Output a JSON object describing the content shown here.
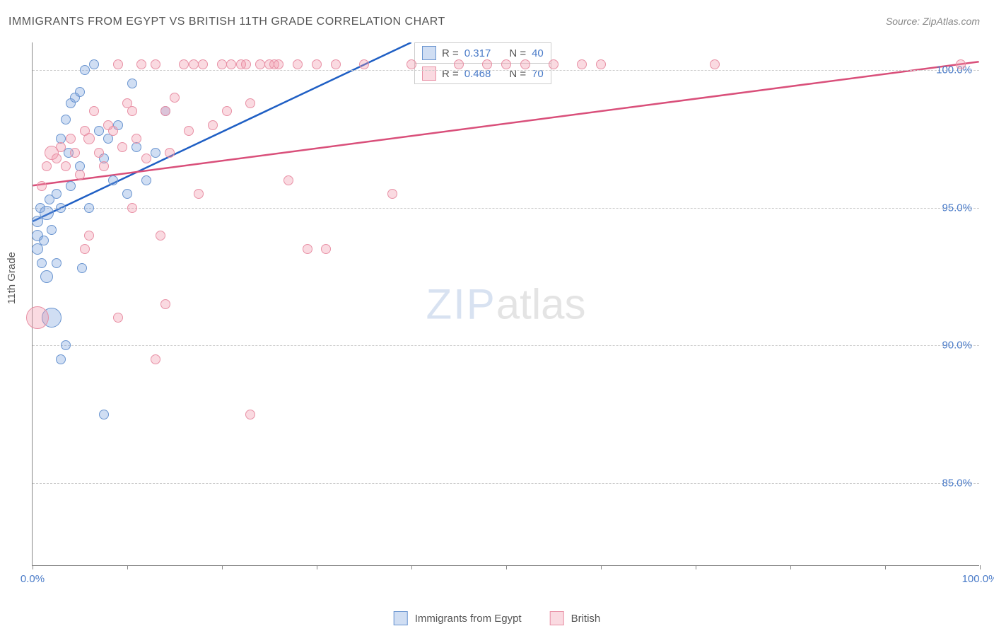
{
  "title": "IMMIGRANTS FROM EGYPT VS BRITISH 11TH GRADE CORRELATION CHART",
  "source": "Source: ZipAtlas.com",
  "ylabel": "11th Grade",
  "watermark_a": "ZIP",
  "watermark_b": "atlas",
  "chart": {
    "type": "scatter",
    "xlim": [
      0,
      100
    ],
    "ylim": [
      82,
      101
    ],
    "ytick_labels": [
      "85.0%",
      "90.0%",
      "95.0%",
      "100.0%"
    ],
    "ytick_values": [
      85,
      90,
      95,
      100
    ],
    "xtick_values": [
      0,
      10,
      20,
      30,
      40,
      50,
      60,
      70,
      80,
      90,
      100
    ],
    "xtick_labels_shown": {
      "0": "0.0%",
      "100": "100.0%"
    },
    "grid_color": "#cccccc",
    "axis_color": "#888888",
    "background": "#ffffff",
    "label_color": "#4a7bc8",
    "series": [
      {
        "name": "Immigrants from Egypt",
        "fill": "rgba(120,160,220,0.35)",
        "stroke": "#6a95d0",
        "trend_color": "#1f5fc4",
        "R": "0.317",
        "N": "40",
        "trend": {
          "x1": 0,
          "y1": 94.5,
          "x2": 40,
          "y2": 101
        },
        "points": [
          {
            "x": 0.5,
            "y": 94.5,
            "r": 8
          },
          {
            "x": 0.5,
            "y": 94.0,
            "r": 8
          },
          {
            "x": 0.5,
            "y": 93.5,
            "r": 8
          },
          {
            "x": 0.8,
            "y": 95.0,
            "r": 7
          },
          {
            "x": 1.0,
            "y": 93.0,
            "r": 7
          },
          {
            "x": 1.2,
            "y": 93.8,
            "r": 7
          },
          {
            "x": 1.5,
            "y": 94.8,
            "r": 10
          },
          {
            "x": 1.8,
            "y": 95.3,
            "r": 7
          },
          {
            "x": 1.5,
            "y": 92.5,
            "r": 9
          },
          {
            "x": 2.0,
            "y": 94.2,
            "r": 7
          },
          {
            "x": 2.5,
            "y": 95.5,
            "r": 7
          },
          {
            "x": 2.5,
            "y": 93.0,
            "r": 7
          },
          {
            "x": 3.0,
            "y": 97.5,
            "r": 7
          },
          {
            "x": 3.0,
            "y": 95.0,
            "r": 7
          },
          {
            "x": 3.5,
            "y": 98.2,
            "r": 7
          },
          {
            "x": 3.8,
            "y": 97.0,
            "r": 7
          },
          {
            "x": 4.0,
            "y": 98.8,
            "r": 7
          },
          {
            "x": 4.5,
            "y": 99.0,
            "r": 7
          },
          {
            "x": 4.0,
            "y": 95.8,
            "r": 7
          },
          {
            "x": 5.0,
            "y": 99.2,
            "r": 7
          },
          {
            "x": 5.0,
            "y": 96.5,
            "r": 7
          },
          {
            "x": 5.5,
            "y": 100.0,
            "r": 7
          },
          {
            "x": 5.2,
            "y": 92.8,
            "r": 7
          },
          {
            "x": 6.0,
            "y": 95.0,
            "r": 7
          },
          {
            "x": 6.5,
            "y": 100.2,
            "r": 7
          },
          {
            "x": 7.0,
            "y": 97.8,
            "r": 7
          },
          {
            "x": 7.5,
            "y": 96.8,
            "r": 7
          },
          {
            "x": 8.0,
            "y": 97.5,
            "r": 7
          },
          {
            "x": 8.5,
            "y": 96.0,
            "r": 7
          },
          {
            "x": 9.0,
            "y": 98.0,
            "r": 7
          },
          {
            "x": 10.0,
            "y": 95.5,
            "r": 7
          },
          {
            "x": 10.5,
            "y": 99.5,
            "r": 7
          },
          {
            "x": 11.0,
            "y": 97.2,
            "r": 7
          },
          {
            "x": 12.0,
            "y": 96.0,
            "r": 7
          },
          {
            "x": 13.0,
            "y": 97.0,
            "r": 7
          },
          {
            "x": 14.0,
            "y": 98.5,
            "r": 7
          },
          {
            "x": 7.5,
            "y": 87.5,
            "r": 7
          },
          {
            "x": 3.5,
            "y": 90.0,
            "r": 7
          },
          {
            "x": 3.0,
            "y": 89.5,
            "r": 7
          },
          {
            "x": 2.0,
            "y": 91.0,
            "r": 14
          }
        ]
      },
      {
        "name": "British",
        "fill": "rgba(240,150,170,0.35)",
        "stroke": "#e890a5",
        "trend_color": "#d94f7a",
        "R": "0.468",
        "N": "70",
        "trend": {
          "x1": 0,
          "y1": 95.8,
          "x2": 100,
          "y2": 100.3
        },
        "points": [
          {
            "x": 0.5,
            "y": 91.0,
            "r": 16
          },
          {
            "x": 1.0,
            "y": 95.8,
            "r": 7
          },
          {
            "x": 1.5,
            "y": 96.5,
            "r": 7
          },
          {
            "x": 2.0,
            "y": 97.0,
            "r": 10
          },
          {
            "x": 2.5,
            "y": 96.8,
            "r": 7
          },
          {
            "x": 3.0,
            "y": 97.2,
            "r": 7
          },
          {
            "x": 3.5,
            "y": 96.5,
            "r": 7
          },
          {
            "x": 4.0,
            "y": 97.5,
            "r": 7
          },
          {
            "x": 4.5,
            "y": 97.0,
            "r": 7
          },
          {
            "x": 5.0,
            "y": 96.2,
            "r": 7
          },
          {
            "x": 5.5,
            "y": 97.8,
            "r": 7
          },
          {
            "x": 6.0,
            "y": 97.5,
            "r": 8
          },
          {
            "x": 6.5,
            "y": 98.5,
            "r": 7
          },
          {
            "x": 7.0,
            "y": 97.0,
            "r": 7
          },
          {
            "x": 7.5,
            "y": 96.5,
            "r": 7
          },
          {
            "x": 8.0,
            "y": 98.0,
            "r": 7
          },
          {
            "x": 8.5,
            "y": 97.8,
            "r": 7
          },
          {
            "x": 9.0,
            "y": 100.2,
            "r": 7
          },
          {
            "x": 9.5,
            "y": 97.2,
            "r": 7
          },
          {
            "x": 10.0,
            "y": 98.8,
            "r": 7
          },
          {
            "x": 10.5,
            "y": 98.5,
            "r": 7
          },
          {
            "x": 11.0,
            "y": 97.5,
            "r": 7
          },
          {
            "x": 11.5,
            "y": 100.2,
            "r": 7
          },
          {
            "x": 12.0,
            "y": 96.8,
            "r": 7
          },
          {
            "x": 13.0,
            "y": 100.2,
            "r": 7
          },
          {
            "x": 13.5,
            "y": 94.0,
            "r": 7
          },
          {
            "x": 14.0,
            "y": 98.5,
            "r": 7
          },
          {
            "x": 14.5,
            "y": 97.0,
            "r": 7
          },
          {
            "x": 15.0,
            "y": 99.0,
            "r": 7
          },
          {
            "x": 16.0,
            "y": 100.2,
            "r": 7
          },
          {
            "x": 16.5,
            "y": 97.8,
            "r": 7
          },
          {
            "x": 17.0,
            "y": 100.2,
            "r": 7
          },
          {
            "x": 17.5,
            "y": 95.5,
            "r": 7
          },
          {
            "x": 18.0,
            "y": 100.2,
            "r": 7
          },
          {
            "x": 19.0,
            "y": 98.0,
            "r": 7
          },
          {
            "x": 20.0,
            "y": 100.2,
            "r": 7
          },
          {
            "x": 20.5,
            "y": 98.5,
            "r": 7
          },
          {
            "x": 21.0,
            "y": 100.2,
            "r": 7
          },
          {
            "x": 22.0,
            "y": 100.2,
            "r": 7
          },
          {
            "x": 22.5,
            "y": 100.2,
            "r": 7
          },
          {
            "x": 23.0,
            "y": 98.8,
            "r": 7
          },
          {
            "x": 24.0,
            "y": 100.2,
            "r": 7
          },
          {
            "x": 25.0,
            "y": 100.2,
            "r": 7
          },
          {
            "x": 25.5,
            "y": 100.2,
            "r": 7
          },
          {
            "x": 26.0,
            "y": 100.2,
            "r": 7
          },
          {
            "x": 27.0,
            "y": 96.0,
            "r": 7
          },
          {
            "x": 28.0,
            "y": 100.2,
            "r": 7
          },
          {
            "x": 29.0,
            "y": 93.5,
            "r": 7
          },
          {
            "x": 30.0,
            "y": 100.2,
            "r": 7
          },
          {
            "x": 31.0,
            "y": 93.5,
            "r": 7
          },
          {
            "x": 32.0,
            "y": 100.2,
            "r": 7
          },
          {
            "x": 35.0,
            "y": 100.2,
            "r": 7
          },
          {
            "x": 38.0,
            "y": 95.5,
            "r": 7
          },
          {
            "x": 40.0,
            "y": 100.2,
            "r": 7
          },
          {
            "x": 45.0,
            "y": 100.2,
            "r": 7
          },
          {
            "x": 48.0,
            "y": 100.2,
            "r": 7
          },
          {
            "x": 50.0,
            "y": 100.2,
            "r": 7
          },
          {
            "x": 52.0,
            "y": 100.2,
            "r": 7
          },
          {
            "x": 55.0,
            "y": 100.2,
            "r": 7
          },
          {
            "x": 58.0,
            "y": 100.2,
            "r": 7
          },
          {
            "x": 60.0,
            "y": 100.2,
            "r": 7
          },
          {
            "x": 72.0,
            "y": 100.2,
            "r": 7
          },
          {
            "x": 98.0,
            "y": 100.2,
            "r": 7
          },
          {
            "x": 9.0,
            "y": 91.0,
            "r": 7
          },
          {
            "x": 10.5,
            "y": 95.0,
            "r": 7
          },
          {
            "x": 13.0,
            "y": 89.5,
            "r": 7
          },
          {
            "x": 14.0,
            "y": 91.5,
            "r": 7
          },
          {
            "x": 23.0,
            "y": 87.5,
            "r": 7
          },
          {
            "x": 5.5,
            "y": 93.5,
            "r": 7
          },
          {
            "x": 6.0,
            "y": 94.0,
            "r": 7
          }
        ]
      }
    ]
  },
  "legend_top": {
    "r_label": "R =",
    "n_label": "N ="
  },
  "legend_bottom": {
    "series1": "Immigrants from Egypt",
    "series2": "British"
  }
}
